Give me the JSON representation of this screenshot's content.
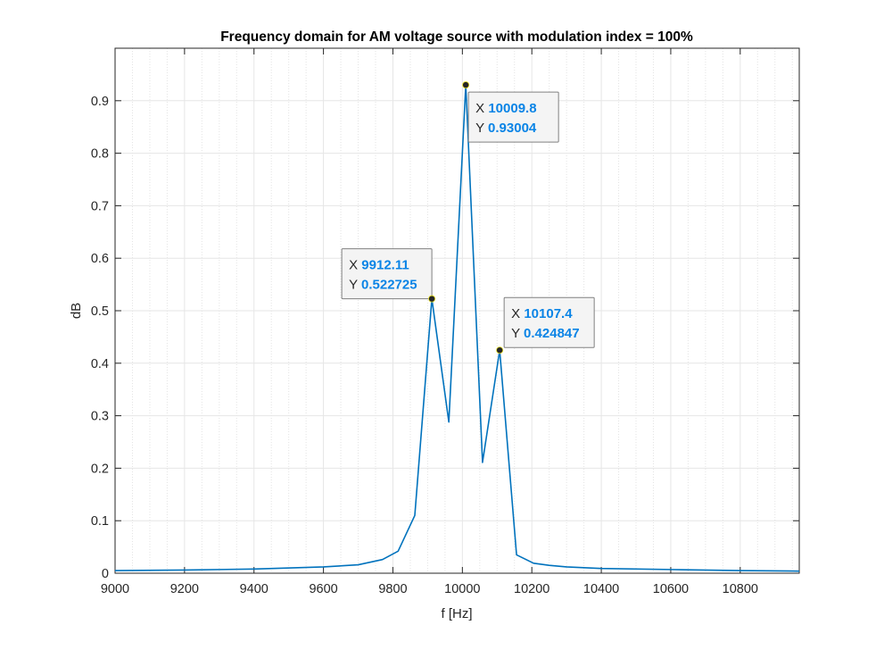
{
  "chart_data": {
    "type": "line",
    "title": "Frequency domain for AM voltage source with modulation index = 100%",
    "xlabel": "f [Hz]",
    "ylabel": "dB",
    "xlim": [
      9000,
      10970
    ],
    "ylim": [
      0,
      1.0
    ],
    "grid": true,
    "minor_grid_x": true,
    "xticks": [
      9000,
      9200,
      9400,
      9600,
      9800,
      10000,
      10200,
      10400,
      10600,
      10800
    ],
    "xtick_labels": [
      "9000",
      "9200",
      "9400",
      "9600",
      "9800",
      "10000",
      "10200",
      "10400",
      "10600",
      "10800"
    ],
    "yticks": [
      0,
      0.1,
      0.2,
      0.3,
      0.4,
      0.5,
      0.6,
      0.7,
      0.8,
      0.9
    ],
    "ytick_labels": [
      "0",
      "0.1",
      "0.2",
      "0.3",
      "0.4",
      "0.5",
      "0.6",
      "0.7",
      "0.8",
      "0.9"
    ],
    "series": [
      {
        "color": "#0072BD",
        "x": [
          9000,
          9200,
          9400,
          9600,
          9700,
          9770,
          9815,
          9863,
          9912.11,
          9961,
          10009.8,
          10058,
          10107.4,
          10156,
          10205,
          10250,
          10300,
          10400,
          10600,
          10800,
          10970
        ],
        "y": [
          0.005,
          0.006,
          0.008,
          0.012,
          0.016,
          0.026,
          0.042,
          0.11,
          0.522725,
          0.288,
          0.93004,
          0.211,
          0.424847,
          0.035,
          0.019,
          0.015,
          0.012,
          0.009,
          0.007,
          0.005,
          0.004
        ]
      }
    ],
    "datatips": [
      {
        "x_label": "X",
        "x_value": "9912.11",
        "y_label": "Y",
        "y_value": "0.522725",
        "x": 9912.11,
        "y": 0.522725,
        "side": "upper-left"
      },
      {
        "x_label": "X",
        "x_value": "10009.8",
        "y_label": "Y",
        "y_value": "0.93004",
        "x": 10009.8,
        "y": 0.93004,
        "side": "lower-right"
      },
      {
        "x_label": "X",
        "x_value": "10107.4",
        "y_label": "Y",
        "y_value": "0.424847",
        "x": 10107.4,
        "y": 0.424847,
        "side": "upper-right"
      }
    ],
    "colors": {
      "line": "#0072BD",
      "datatip_value": "#0a84e6",
      "grid": "#e6e6e6",
      "axis": "#262626"
    }
  }
}
